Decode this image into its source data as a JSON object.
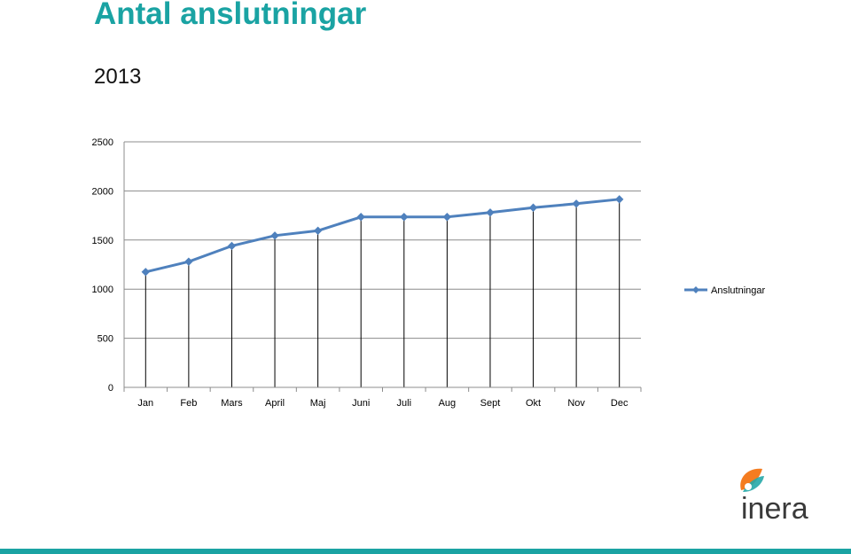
{
  "slide": {
    "title": "Antal anslutningar",
    "subtitle": "2013"
  },
  "colors": {
    "title": "#1aa3a3",
    "series": "#4f81bd",
    "bottom_bar": "#1aa3a3",
    "logo_orange": "#f47c20",
    "logo_teal": "#26a9a9",
    "logo_text": "#3a3a3a"
  },
  "logo": {
    "text": "inera",
    "icon": "inera-leaf-icon"
  },
  "chart_data": {
    "type": "line",
    "categories": [
      "Jan",
      "Feb",
      "Mars",
      "April",
      "Maj",
      "Juni",
      "Juli",
      "Aug",
      "Sept",
      "Okt",
      "Nov",
      "Dec"
    ],
    "series": [
      {
        "name": "Anslutningar",
        "values": [
          1175,
          1280,
          1440,
          1545,
          1595,
          1735,
          1735,
          1735,
          1780,
          1830,
          1870,
          1915
        ]
      }
    ],
    "yticks": [
      0,
      500,
      1000,
      1500,
      2000,
      2500
    ],
    "ylim": [
      0,
      2500
    ],
    "grid": "horizontal",
    "drop_lines": true,
    "marker": "diamond",
    "legend_position": "right"
  }
}
